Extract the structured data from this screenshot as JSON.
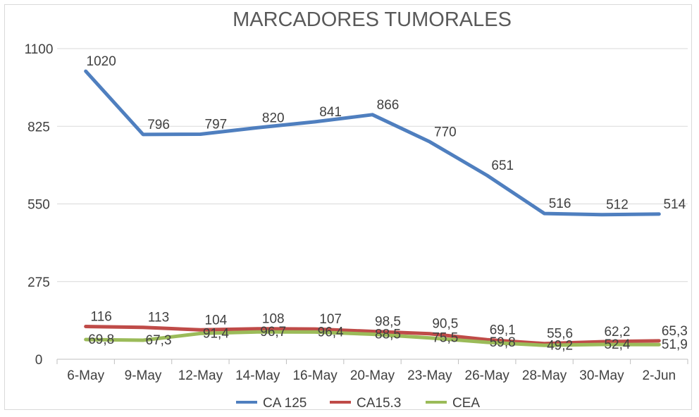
{
  "chart_data": {
    "type": "line",
    "title": "MARCADORES TUMORALES",
    "xlabel": "",
    "ylabel": "",
    "ylim": [
      0,
      1100
    ],
    "yticks": [
      "0",
      "275",
      "550",
      "825",
      "1100"
    ],
    "categories": [
      "6-May",
      "9-May",
      "12-May",
      "14-May",
      "16-May",
      "20-May",
      "23-May",
      "26-May",
      "28-May",
      "30-May",
      "2-Jun"
    ],
    "grid": true,
    "legend": "bottom",
    "series": [
      {
        "name": "CA 125",
        "color": "#4f7fbf",
        "values": [
          1020,
          796,
          797,
          820,
          841,
          866,
          770,
          651,
          516,
          512,
          514
        ],
        "labels": [
          "1020",
          "796",
          "797",
          "820",
          "841",
          "866",
          "770",
          "651",
          "516",
          "512",
          "514"
        ]
      },
      {
        "name": "CA15.3",
        "color": "#bf4b48",
        "values": [
          116,
          113,
          104,
          108,
          107,
          98.5,
          90.5,
          69.1,
          55.6,
          62.2,
          65.3
        ],
        "labels": [
          "116",
          "113",
          "104",
          "108",
          "107",
          "98,5",
          "90,5",
          "69,1",
          "55,6",
          "62,2",
          "65,3"
        ]
      },
      {
        "name": "CEA",
        "color": "#9bbb59",
        "values": [
          69.8,
          67.3,
          91.4,
          96.7,
          96.4,
          88.5,
          75.5,
          59.8,
          49.2,
          52.4,
          51.9
        ],
        "labels": [
          "69,8",
          "67,3",
          "91,4",
          "96,7",
          "96,4",
          "88,5",
          "75,5",
          "59,8",
          "49,2",
          "52,4",
          "51,9"
        ]
      }
    ]
  }
}
